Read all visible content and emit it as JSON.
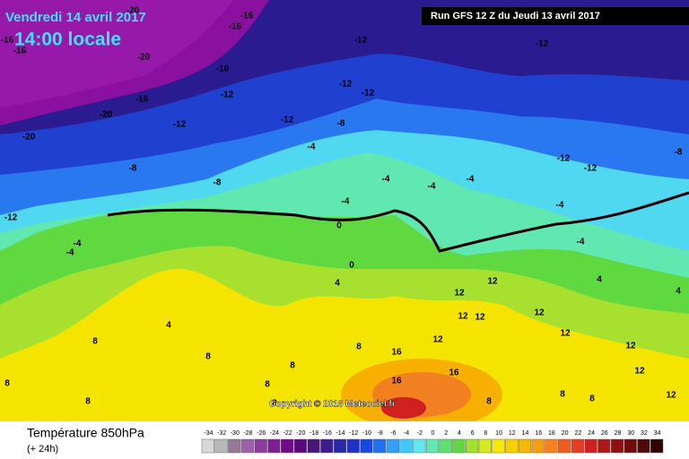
{
  "header": {
    "date": "Vendredi 14 avril 2017",
    "time": "14:00 locale",
    "run": "Run GFS 12 Z du Jeudi 13 avril 2017"
  },
  "copyright": "Copyright © 2016 Meteociel.fr",
  "footer": {
    "title": "Température 850hPa",
    "lead": "(+ 24h)"
  },
  "contour_labels": [
    "-20",
    "-16",
    "-16",
    "-16",
    "-16",
    "-20",
    "-16",
    "-12",
    "-12",
    "-12",
    "-12",
    "-12",
    "-16",
    "-20",
    "-12",
    "-12",
    "-8",
    "-20",
    "-4",
    "-8",
    "-8",
    "-12",
    "-12",
    "-8",
    "-4",
    "-4",
    "-4",
    "-4",
    "-12",
    "-4",
    "0",
    "-4",
    "-4",
    "-4",
    "4",
    "0",
    "4",
    "4",
    "12",
    "12",
    "12",
    "12",
    "12",
    "4",
    "12",
    "12",
    "8",
    "8",
    "16",
    "12",
    "12",
    "16",
    "16",
    "8",
    "8",
    "12",
    "8",
    "8",
    "8",
    "8",
    "8",
    "8",
    "8"
  ],
  "legend": {
    "values": [
      -34,
      -32,
      -30,
      -28,
      -26,
      -24,
      -22,
      -20,
      -18,
      -16,
      -14,
      -12,
      -10,
      -8,
      -6,
      -4,
      -2,
      0,
      2,
      4,
      6,
      8,
      10,
      12,
      14,
      16,
      18,
      20,
      22,
      24,
      26,
      28,
      30,
      32,
      34
    ],
    "colors": [
      "#d8d8d8",
      "#b8b8b8",
      "#987898",
      "#a060a8",
      "#8c3c9c",
      "#801c94",
      "#700a8a",
      "#5a0a7e",
      "#4a1478",
      "#3c1c8c",
      "#2828a8",
      "#2030c8",
      "#1848e0",
      "#2070f0",
      "#30a0f8",
      "#40c8f8",
      "#60e8f0",
      "#60e8b0",
      "#60e070",
      "#60d840",
      "#a0e030",
      "#d8e820",
      "#f8e800",
      "#f8d000",
      "#f8b800",
      "#f89c10",
      "#f88020",
      "#f05c20",
      "#e83c20",
      "#d02020",
      "#b01818",
      "#901010",
      "#700c0c",
      "#500808",
      "#300404"
    ]
  }
}
